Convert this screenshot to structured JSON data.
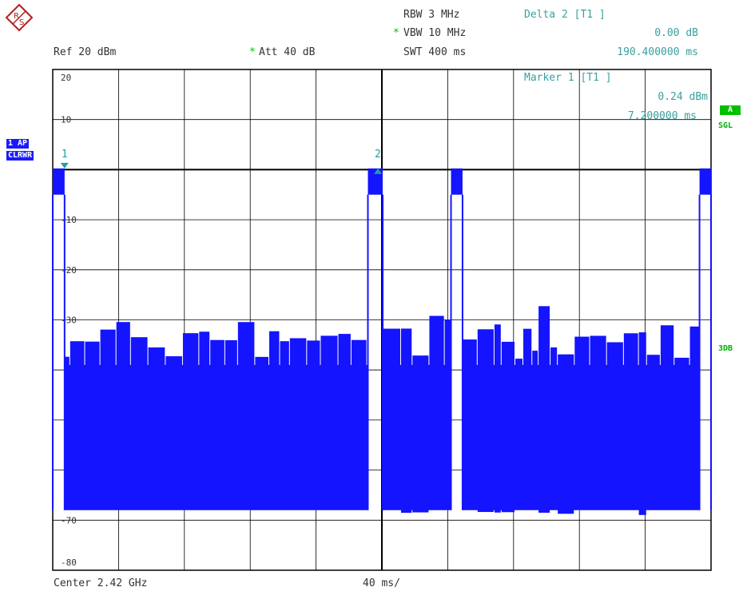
{
  "header": {
    "ref": "Ref  20 dBm",
    "att_star": "*",
    "att": "Att  40 dB",
    "rbw": "RBW 3 MHz",
    "vbw_star": "*",
    "vbw": "VBW 10 MHz",
    "swt": "SWT 400 ms",
    "delta_title": "Delta 2 [T1 ]",
    "delta_level": "0.00 dB",
    "delta_time": "190.400000 ms"
  },
  "marker_box": {
    "title": "Marker 1 [T1 ]",
    "level": "0.24 dBm",
    "time": "7.200000 ms"
  },
  "side_badges": {
    "trace": "1 AP",
    "mode": "CLRWR",
    "a": "A",
    "sgl": "SGL",
    "db3": "3DB"
  },
  "footer": {
    "center": "Center 2.42 GHz",
    "span": "40 ms/"
  },
  "colors": {
    "trace": "#1414ff",
    "grid": "#000000",
    "marker": "#20a0a0",
    "accent": "#00c000"
  },
  "chart_data": {
    "type": "line",
    "title": "",
    "xlabel": "40 ms/",
    "ylabel": "",
    "xlim": [
      0,
      400
    ],
    "ylim": [
      -80,
      20
    ],
    "x_unit": "ms",
    "y_unit": "dBm",
    "ytick_labels": [
      "20",
      "10",
      "",
      "-10",
      "-20",
      "-30",
      "",
      "",
      "",
      "-70",
      "-80"
    ],
    "ytick_values": [
      20,
      10,
      0,
      -10,
      -20,
      -30,
      -40,
      -50,
      -60,
      -70,
      -80
    ],
    "grid": true,
    "ref_level": 0,
    "bursts": [
      {
        "start": 0,
        "end": 7.2,
        "level": 0.24
      },
      {
        "start": 191.5,
        "end": 200.5,
        "level": 0.24
      },
      {
        "start": 242,
        "end": 249,
        "level": 0.24
      },
      {
        "start": 393,
        "end": 400,
        "level": 0.24
      }
    ],
    "noise_band": {
      "top": -39,
      "bottom": -68
    },
    "noise_segments": [
      {
        "start": 7.2,
        "end": 191.5
      },
      {
        "start": 200.5,
        "end": 242
      },
      {
        "start": 249,
        "end": 393
      }
    ],
    "markers": [
      {
        "id": "1",
        "x": 7.2,
        "y": 0.24
      },
      {
        "id": "2",
        "x": 197.6,
        "y": 0.24
      }
    ]
  }
}
